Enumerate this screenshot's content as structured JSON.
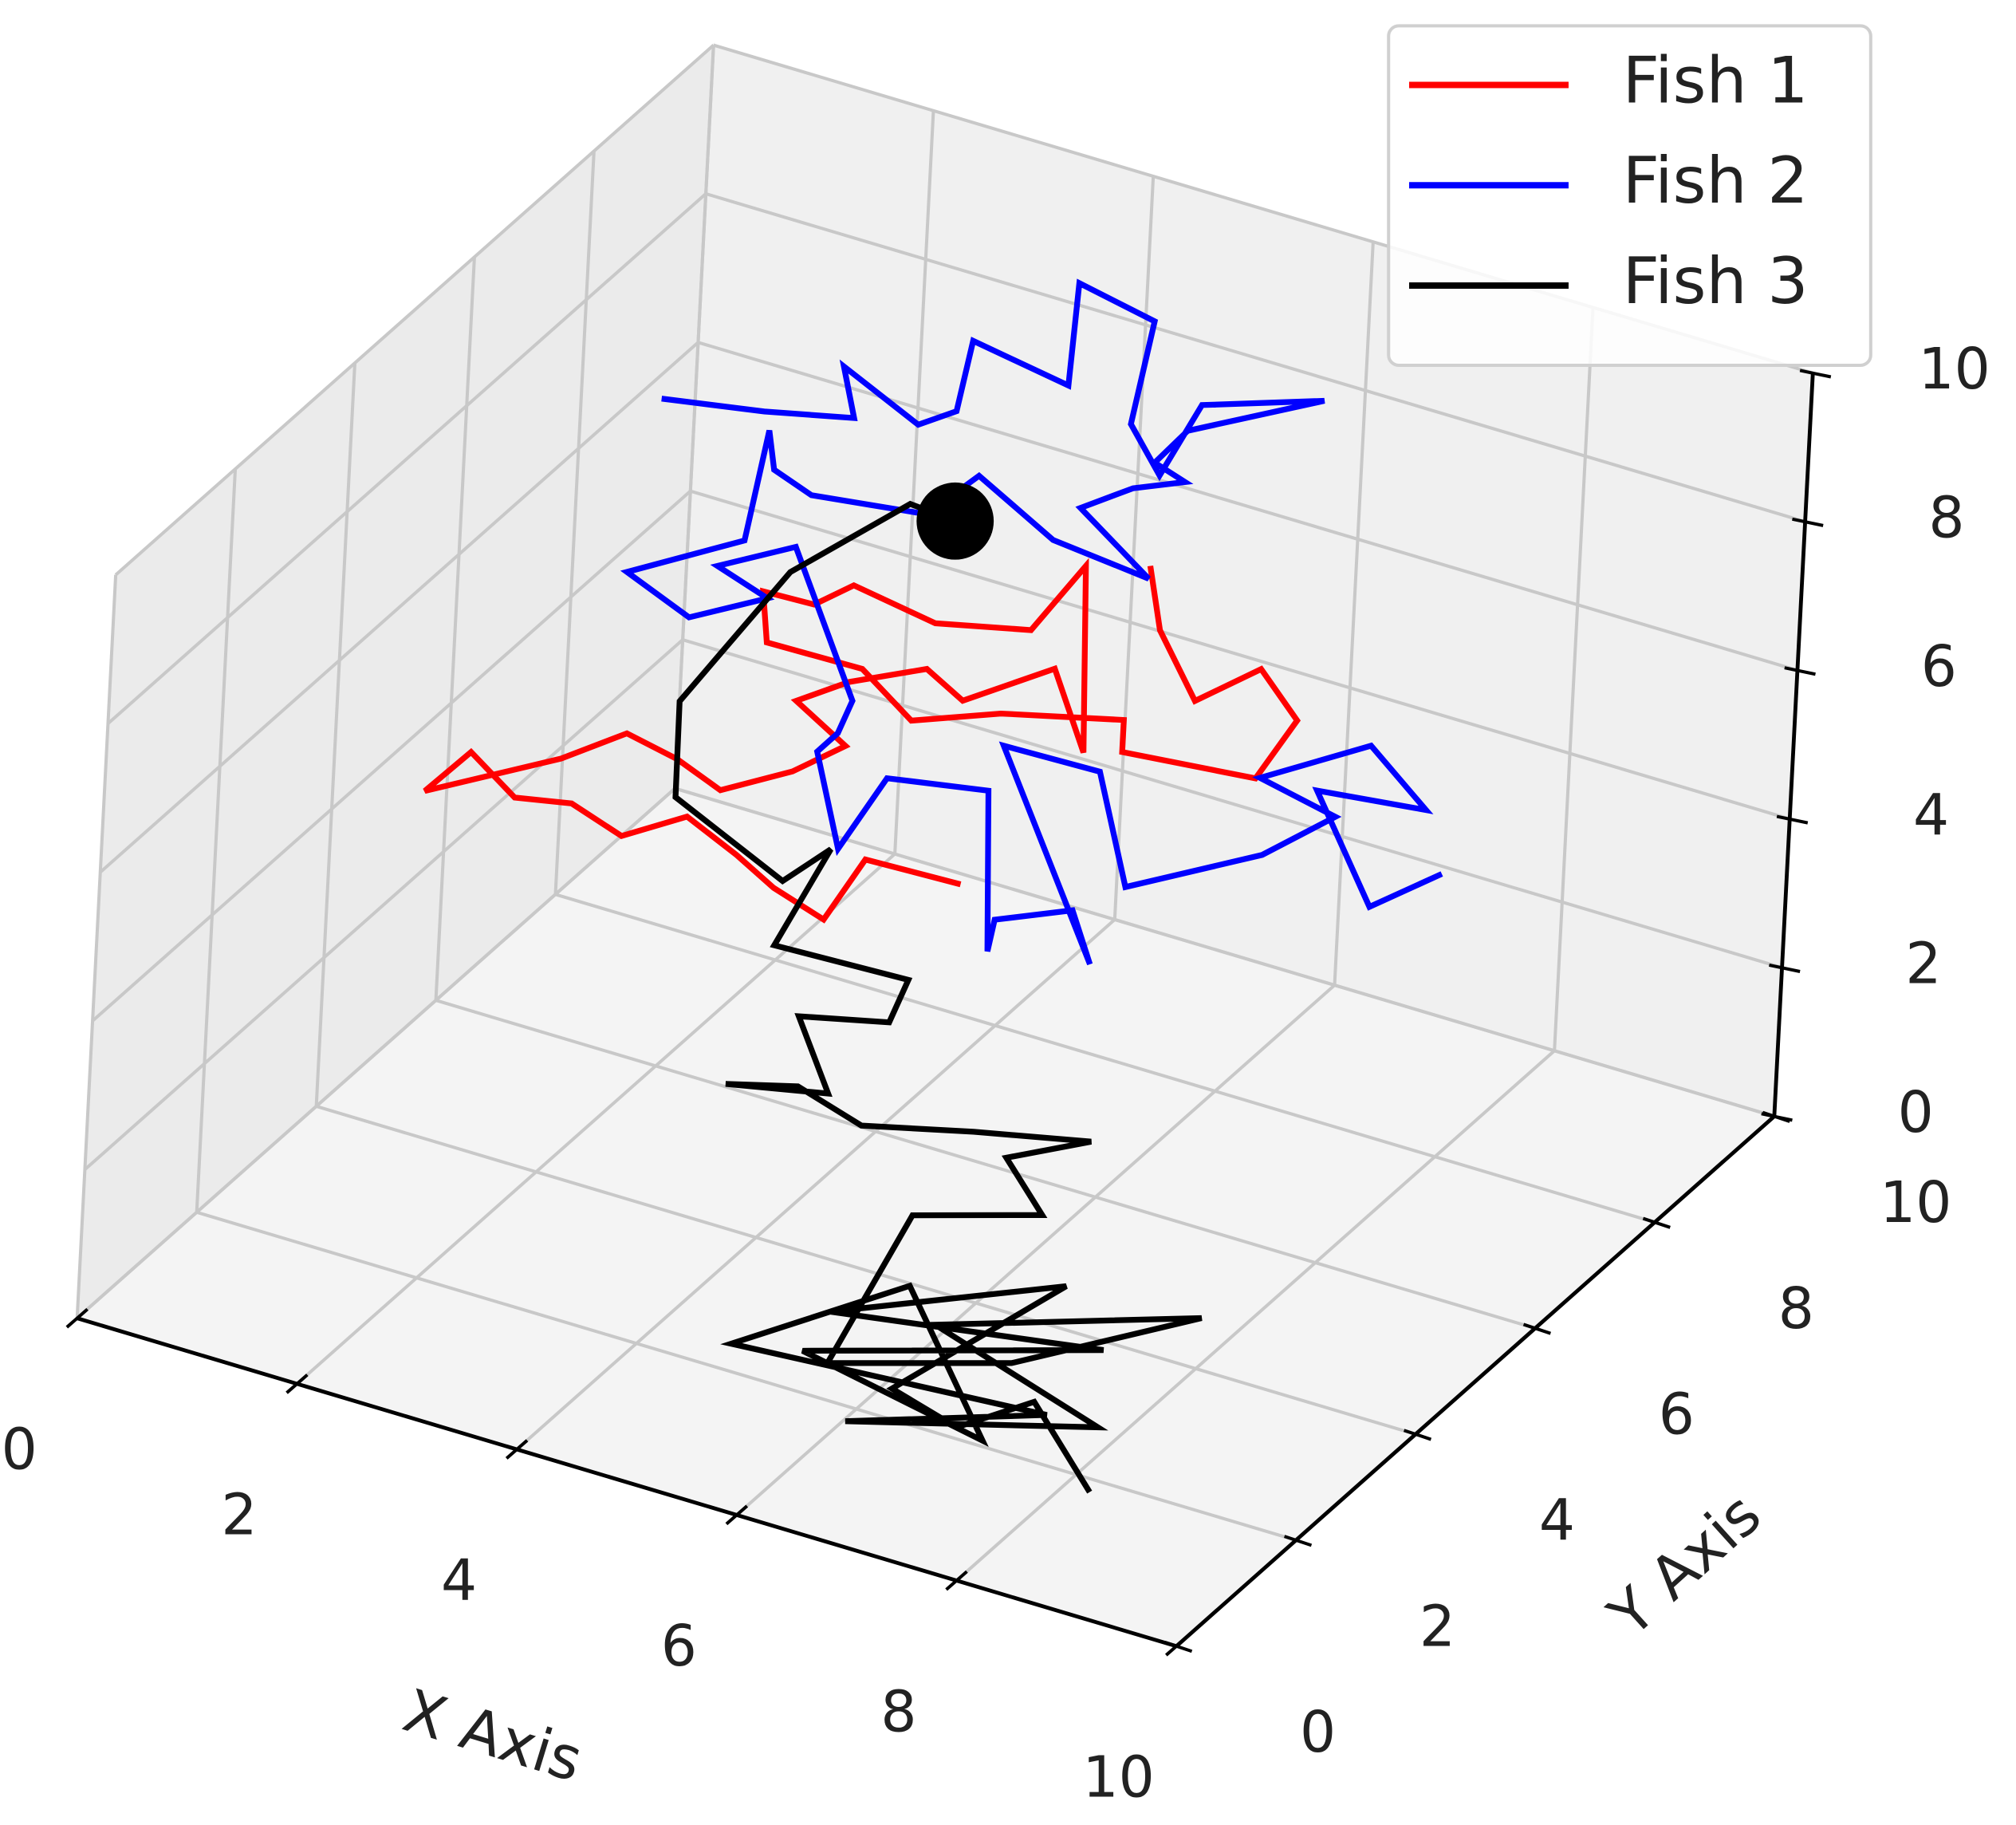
{
  "chart_data": {
    "type": "line3d",
    "xlabel": "X Axis",
    "ylabel": "Y Axis",
    "xlim": [
      0,
      10
    ],
    "ylim": [
      0,
      10
    ],
    "zlim": [
      0,
      10
    ],
    "xticks": [
      0,
      2,
      4,
      6,
      8,
      10
    ],
    "yticks": [
      0,
      2,
      4,
      6,
      8,
      10
    ],
    "zticks": [
      0,
      2,
      4,
      6,
      8,
      10
    ],
    "grid": true,
    "legend": "upper right",
    "series": [
      {
        "name": "Fish 1",
        "color": "#ff0000",
        "x": [
          4.81,
          4.14,
          3.87,
          3.51,
          3.24,
          2.88,
          2.43,
          2.07,
          1.67,
          1.35,
          1.04,
          1.98,
          2.43,
          2.79,
          3.1,
          3.6,
          3.96,
          3.6,
          3.96,
          4.5,
          4.76,
          5.39,
          5.62,
          5.57,
          5.21,
          4.54,
          3.96,
          3.69,
          3.33,
          3.37,
          4.05,
          4.41,
          5.03,
          5.89,
          5.89,
          6.83,
          7.1,
          6.83,
          6.38,
          6.11,
          6.02
        ],
        "y": [
          5.68,
          5.3,
          5.15,
          4.95,
          4.8,
          4.6,
          4.35,
          4.15,
          3.93,
          3.75,
          3.58,
          4.1,
          4.35,
          4.55,
          4.73,
          5.0,
          5.2,
          5.0,
          5.2,
          5.5,
          5.65,
          6.0,
          6.13,
          6.1,
          5.9,
          5.53,
          5.2,
          5.05,
          4.85,
          4.88,
          5.25,
          5.45,
          5.8,
          6.28,
          6.28,
          6.8,
          6.95,
          6.8,
          6.55,
          6.4,
          6.35
        ],
        "z": [
          3.91,
          4.22,
          3.4,
          3.81,
          4.24,
          4.74,
          4.46,
          4.88,
          4.94,
          5.54,
          5.0,
          5.48,
          5.84,
          5.51,
          5.1,
          5.38,
          5.74,
          6.33,
          6.6,
          6.8,
          6.38,
          6.84,
          5.72,
          8.23,
          7.35,
          7.41,
          7.9,
          7.63,
          7.79,
          7.1,
          6.78,
          6.1,
          6.22,
          6.17,
          5.74,
          5.43,
          6.22,
          6.9,
          6.45,
          7.39,
          8.25
        ]
      },
      {
        "name": "Fish 2",
        "color": "#0000ff",
        "x": [
          1.36,
          2.08,
          2.71,
          2.62,
          3.16,
          3.42,
          3.51,
          4.19,
          4.23,
          4.77,
          4.64,
          4.86,
          5.13,
          5.98,
          5.04,
          4.82,
          5.04,
          4.68,
          4.32,
          4.82,
          4.14,
          3.6,
          3.25,
          2.44,
          2.17,
          2.12,
          1.99,
          1.18,
          1.63,
          2.17,
          1.81,
          2.35,
          2.8,
          2.71,
          2.57,
          2.75,
          3.07,
          3.78,
          3.83,
          3.87,
          4.41,
          4.55,
          3.87,
          4.55,
          4.77,
          5.71,
          6.21,
          5.67,
          6.43,
          6.84,
          6.07,
          6.48,
          6.97
        ],
        "y": [
          6.75,
          7.15,
          7.5,
          7.45,
          7.75,
          7.9,
          7.95,
          8.33,
          8.35,
          8.65,
          8.58,
          8.7,
          8.85,
          9.33,
          8.8,
          8.68,
          8.8,
          8.6,
          8.4,
          8.68,
          8.3,
          8.0,
          7.8,
          7.35,
          7.2,
          7.18,
          7.1,
          6.65,
          6.9,
          7.2,
          7.0,
          7.3,
          7.55,
          7.5,
          7.43,
          7.53,
          7.7,
          8.1,
          8.13,
          8.15,
          8.45,
          8.53,
          8.15,
          8.53,
          8.65,
          9.18,
          9.45,
          9.15,
          9.58,
          9.8,
          9.38,
          9.6,
          9.88
        ],
        "z": [
          8.16,
          8.02,
          7.96,
          8.65,
          7.89,
          8.08,
          9.03,
          8.46,
          9.84,
          9.35,
          7.96,
          7.28,
          8.24,
          8.33,
          7.89,
          7.45,
          7.2,
          7.1,
          6.82,
          5.89,
          6.38,
          7.22,
          6.69,
          6.91,
          7.24,
          7.76,
          6.28,
          5.82,
          5.23,
          5.51,
          5.93,
          6.21,
          4.16,
          3.72,
          3.46,
          2.16,
          3.13,
          2.99,
          0.83,
          1.26,
          1.41,
          0.69,
          3.6,
          3.28,
          1.74,
          2.21,
          2.75,
          3.25,
          3.71,
          2.87,
          3.09,
          1.55,
          2.01
        ]
      },
      {
        "name": "Fish 3",
        "color": "#000000",
        "x": [
          8.64,
          8.0,
          7.52,
          6.82,
          8.13,
          6.18,
          8.75,
          5.9,
          7.81,
          6.78,
          5.36,
          8.17,
          6.52,
          8.53,
          7.23,
          9.46,
          7.88,
          6.18,
          6.72,
          7.78,
          7.33,
          7.98,
          6.82,
          5.71,
          5.02,
          4.27,
          5.09,
          4.69,
          5.4,
          5.45,
          4.13,
          4.49,
          3.97,
          2.87,
          2.76,
          3.59,
          4.53,
          4.94
        ],
        "y": [
          1.0,
          1.2,
          0.8,
          1.0,
          1.4,
          1.1,
          0.9,
          1.2,
          0.7,
          1.3,
          1.0,
          1.1,
          0.8,
          1.3,
          0.9,
          1.2,
          1.0,
          1.1,
          1.4,
          1.6,
          1.8,
          2.0,
          2.2,
          2.4,
          2.6,
          2.8,
          3.0,
          3.2,
          3.4,
          3.6,
          3.8,
          4.0,
          4.2,
          4.4,
          4.6,
          4.8,
          5.0,
          5.0
        ],
        "z": [
          0.76,
          1.55,
          1.28,
          1.35,
          3.02,
          2.03,
          2.79,
          1.31,
          1.3,
          2.5,
          1.31,
          1.52,
          0.92,
          1.37,
          2.46,
          3.32,
          2.16,
          1.34,
          3.35,
          3.68,
          4.11,
          4.47,
          3.95,
          3.4,
          3.48,
          3.04,
          3.13,
          3.85,
          3.94,
          4.39,
          4.13,
          5.44,
          4.64,
          5.14,
          6.24,
          8.2,
          9.39,
          9.34
        ]
      }
    ],
    "markers": [
      {
        "x": 4.94,
        "y": 5.0,
        "z": 9.34,
        "color": "#000000"
      }
    ]
  }
}
